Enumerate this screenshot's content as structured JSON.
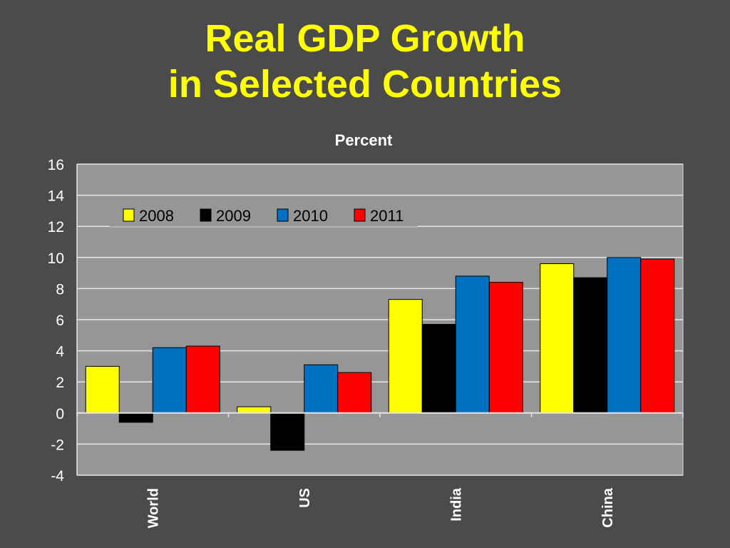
{
  "slide": {
    "title_line1": "Real GDP Growth",
    "title_line2": "in Selected Countries"
  },
  "chart_data": {
    "type": "bar",
    "title": "",
    "ylabel": "Percent",
    "xlabel": "",
    "categories": [
      "World",
      "US",
      "India",
      "China"
    ],
    "ylim": [
      -4,
      16
    ],
    "yticks": [
      16,
      14,
      12,
      10,
      8,
      6,
      4,
      2,
      0,
      -2,
      -4
    ],
    "grid": true,
    "legend_position": "top-left",
    "series": [
      {
        "name": "2008",
        "color": "#ffff00",
        "values": [
          3.0,
          0.4,
          7.3,
          9.6
        ]
      },
      {
        "name": "2009",
        "color": "#000000",
        "values": [
          -0.6,
          -2.4,
          5.7,
          8.7
        ]
      },
      {
        "name": "2010",
        "color": "#0070c0",
        "values": [
          4.2,
          3.1,
          8.8,
          10.0
        ]
      },
      {
        "name": "2011",
        "color": "#ff0000",
        "values": [
          4.3,
          2.6,
          8.4,
          9.9
        ]
      }
    ]
  },
  "colors": {
    "background": "#4b4b4b",
    "plot_area": "#969696",
    "title": "#ffff00"
  }
}
